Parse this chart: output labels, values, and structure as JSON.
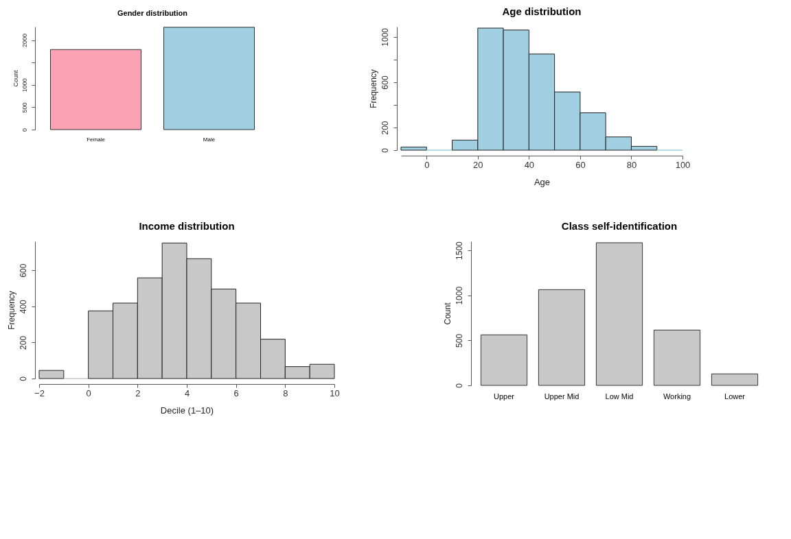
{
  "chart_data": [
    {
      "type": "bar",
      "title": "Gender distribution",
      "ylabel": "Count",
      "categories": [
        "Female",
        "Male"
      ],
      "values": [
        1790,
        2290
      ],
      "colors": [
        "#fba3b4",
        "#9fcfe0"
      ],
      "ylim": [
        0,
        2300
      ],
      "yticks": [
        0,
        500,
        1000,
        {
          "value": 1500,
          "label": null
        },
        2000
      ],
      "grid": false
    },
    {
      "type": "histogram",
      "title": "Age distribution",
      "xlabel": "Age",
      "ylabel": "Frequency",
      "bins": [
        -10,
        0,
        10,
        20,
        30,
        40,
        50,
        60,
        70,
        80,
        90,
        100
      ],
      "values": [
        28,
        0,
        89,
        1078,
        1061,
        849,
        514,
        330,
        117,
        34,
        0
      ],
      "color": "#9fcfe0",
      "xlim": [
        -10,
        100
      ],
      "xticks": [
        0,
        20,
        40,
        60,
        80,
        100
      ],
      "ylim": [
        0,
        1090
      ],
      "yticks": [
        0,
        200,
        {
          "value": 400,
          "label": null
        },
        600,
        {
          "value": 800,
          "label": null
        },
        1000
      ],
      "grid": false
    },
    {
      "type": "histogram",
      "title": "Income distribution",
      "xlabel": "Decile (1–10)",
      "ylabel": "Frequency",
      "bins": [
        -2,
        -1,
        0,
        1,
        2,
        3,
        4,
        5,
        6,
        7,
        8,
        9,
        10
      ],
      "values": [
        45,
        0,
        375,
        418,
        558,
        751,
        664,
        496,
        418,
        218,
        66,
        79
      ],
      "color": "#c8c8c8",
      "xlim": [
        -2,
        10
      ],
      "xticks": [
        -2,
        0,
        2,
        4,
        6,
        8,
        10
      ],
      "ylim": [
        0,
        760
      ],
      "yticks": [
        0,
        200,
        400,
        600
      ],
      "grid": false
    },
    {
      "type": "bar",
      "title": "Class self-identification",
      "ylabel": "Count",
      "categories": [
        "Upper",
        "Upper Mid",
        "Low Mid",
        "Working",
        "Lower"
      ],
      "values": [
        562,
        1064,
        1585,
        615,
        128
      ],
      "color": "#c8c8c8",
      "ylim": [
        0,
        1600
      ],
      "yticks": [
        0,
        500,
        1000,
        1500
      ],
      "grid": false
    }
  ]
}
